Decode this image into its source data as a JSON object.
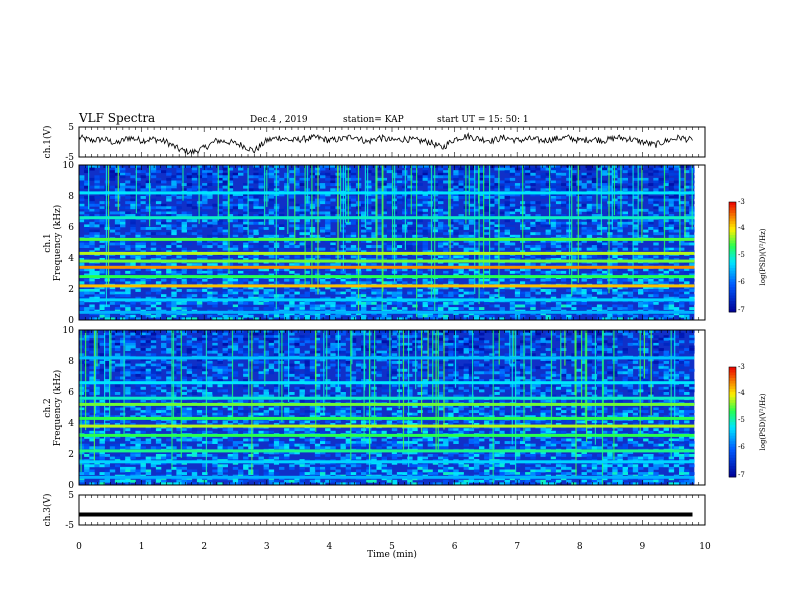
{
  "header": {
    "title": "VLF Spectra",
    "date": "Dec.4 , 2019",
    "station": "station= KAP",
    "start": "start UT = 15: 50: 1"
  },
  "colors": {
    "waveform": "#000000",
    "spectro_bg": "#1030c8"
  },
  "chart_data": [
    {
      "type": "line",
      "name": "ch1-waveform",
      "ylabel": "ch.1(V)",
      "ylim": [
        -5,
        5
      ],
      "yticks": [
        "5",
        "-5"
      ],
      "x": [
        0,
        0.2,
        0.4,
        0.6,
        0.8,
        1.0,
        1.2,
        1.4,
        1.6,
        1.8,
        2.0,
        2.2,
        2.4,
        2.6,
        2.8,
        3.0,
        3.2,
        3.4,
        3.6,
        3.8,
        4.0,
        4.2,
        4.4,
        4.6,
        4.8,
        5.0,
        5.2,
        5.4,
        5.6,
        5.8,
        6.0,
        6.2,
        6.4,
        6.6,
        6.8,
        7.0,
        7.2,
        7.4,
        7.6,
        7.8,
        8.0,
        8.2,
        8.4,
        8.6,
        8.8,
        9.0,
        9.2,
        9.4,
        9.6,
        9.8
      ],
      "y": [
        1.5,
        0.5,
        1.0,
        -0.5,
        1.5,
        0.5,
        1.0,
        0.0,
        -2.5,
        -3.5,
        -2.0,
        0.5,
        0.0,
        -1.0,
        -3.0,
        0.5,
        1.5,
        0.5,
        1.0,
        1.5,
        0.5,
        1.0,
        2.0,
        0.0,
        1.5,
        0.5,
        1.0,
        0.5,
        0.0,
        -2.0,
        1.0,
        2.0,
        1.0,
        0.5,
        1.5,
        0.5,
        1.0,
        0.5,
        1.0,
        1.5,
        0.5,
        1.0,
        0.5,
        1.5,
        1.0,
        0.0,
        -1.0,
        0.5,
        1.5,
        0.5
      ]
    },
    {
      "type": "heatmap",
      "name": "ch1-spectrogram",
      "ylabel_top": "ch.1",
      "ylabel": "Frequency (kHz)",
      "ylim": [
        0,
        10
      ],
      "yticks": [
        "0",
        "2",
        "4",
        "6",
        "8",
        "10"
      ],
      "colorbar": {
        "label": "log(PSD)(V²/Hz)",
        "range": [
          -7,
          -3
        ],
        "ticks": [
          "-3",
          "-4",
          "-5",
          "-6",
          "-7"
        ]
      },
      "bands": [
        {
          "f": 0.5,
          "level": -5.5
        },
        {
          "f": 1.3,
          "level": -5.3
        },
        {
          "f": 2.2,
          "level": -3.8
        },
        {
          "f": 2.8,
          "level": -4.6
        },
        {
          "f": 3.4,
          "level": -3.6
        },
        {
          "f": 3.8,
          "level": -4.4
        },
        {
          "f": 4.3,
          "level": -4.2
        },
        {
          "f": 5.2,
          "level": -4.5
        },
        {
          "f": 6.6,
          "level": -5.0
        },
        {
          "f": 8.2,
          "level": -5.2
        }
      ]
    },
    {
      "type": "heatmap",
      "name": "ch2-spectrogram",
      "ylabel_top": "ch.2",
      "ylabel": "Frequency (kHz)",
      "ylim": [
        0,
        10
      ],
      "yticks": [
        "0",
        "2",
        "4",
        "6",
        "8",
        "10"
      ],
      "colorbar": {
        "label": "log(PSD)(V²/Hz)",
        "range": [
          -7,
          -3
        ],
        "ticks": [
          "-3",
          "-4",
          "-5",
          "-6",
          "-7"
        ]
      },
      "bands": [
        {
          "f": 0.5,
          "level": -5.5
        },
        {
          "f": 1.5,
          "level": -5.3
        },
        {
          "f": 2.2,
          "level": -4.8
        },
        {
          "f": 3.2,
          "level": -4.6
        },
        {
          "f": 3.8,
          "level": -4.2
        },
        {
          "f": 4.3,
          "level": -4.6
        },
        {
          "f": 5.2,
          "level": -4.4
        },
        {
          "f": 5.6,
          "level": -5.0
        },
        {
          "f": 6.6,
          "level": -5.2
        },
        {
          "f": 8.2,
          "level": -5.4
        }
      ]
    },
    {
      "type": "line",
      "name": "ch3-waveform",
      "ylabel": "ch.3(V)",
      "ylim": [
        -5,
        5
      ],
      "yticks": [
        "5",
        "-5"
      ],
      "x": [
        0,
        9.8
      ],
      "y": [
        -1.5,
        -1.5
      ]
    }
  ],
  "xaxis": {
    "label": "Time (min)",
    "range": [
      0,
      10
    ],
    "ticks": [
      "0",
      "1",
      "2",
      "3",
      "4",
      "5",
      "6",
      "7",
      "8",
      "9",
      "10"
    ]
  }
}
